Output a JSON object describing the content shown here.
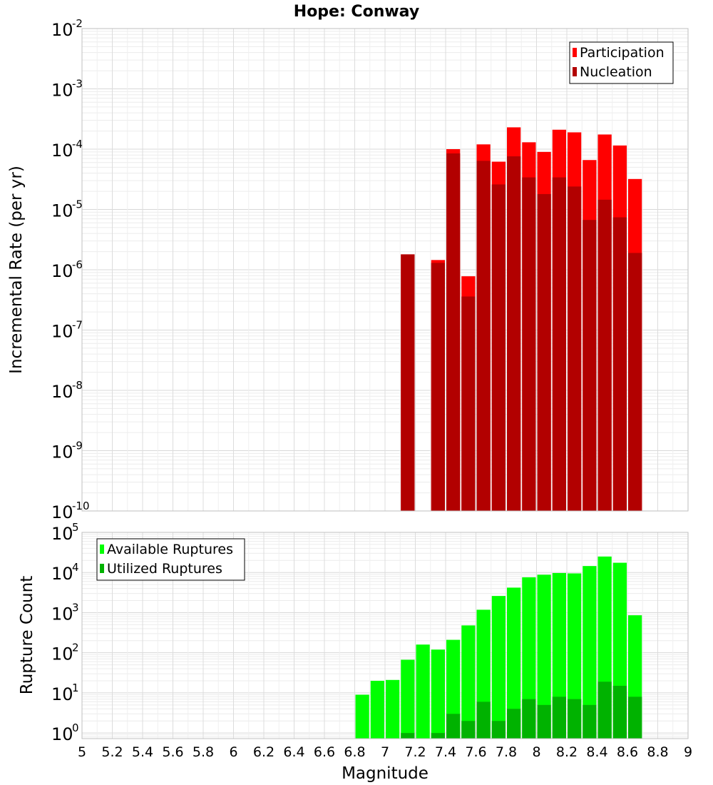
{
  "chart_data": {
    "type": "bar",
    "title": "Hope: Conway",
    "xlabel": "Magnitude",
    "x_ticks": [
      "5",
      "5.2",
      "5.4",
      "5.6",
      "5.8",
      "6",
      "6.2",
      "6.4",
      "6.6",
      "6.8",
      "7",
      "7.2",
      "7.4",
      "7.6",
      "7.8",
      "8",
      "8.2",
      "8.4",
      "8.6",
      "8.8",
      "9"
    ],
    "xlim": [
      5,
      9
    ],
    "panels": [
      {
        "id": "rate",
        "ylabel": "Incremental Rate (per yr)",
        "yscale": "log",
        "ylim_exp": [
          -10,
          -2
        ],
        "y_ticks": [
          {
            "base": "10",
            "exp": "-2"
          },
          {
            "base": "10",
            "exp": "-3"
          },
          {
            "base": "10",
            "exp": "-4"
          },
          {
            "base": "10",
            "exp": "-5"
          },
          {
            "base": "10",
            "exp": "-6"
          },
          {
            "base": "10",
            "exp": "-7"
          },
          {
            "base": "10",
            "exp": "-8"
          },
          {
            "base": "10",
            "exp": "-9"
          },
          {
            "base": "10",
            "exp": "-10"
          }
        ],
        "grid": true,
        "legend_position": "top-right",
        "series": [
          {
            "name": "Participation",
            "color": "#ff0000",
            "x": [
              7.1,
              7.3,
              7.4,
              7.5,
              7.6,
              7.7,
              7.8,
              7.9,
              8.0,
              8.1,
              8.2,
              8.3,
              8.4,
              8.5,
              8.6
            ],
            "values": [
              1.8e-06,
              1.45e-06,
              0.0001,
              7.8e-07,
              0.00012,
              6.2e-05,
              0.00023,
              0.00013,
              9e-05,
              0.00021,
              0.00019,
              6.6e-05,
              0.000175,
              0.000115,
              3.2e-05
            ]
          },
          {
            "name": "Nucleation",
            "color": "#b20000",
            "x": [
              7.1,
              7.3,
              7.4,
              7.5,
              7.6,
              7.7,
              7.8,
              7.9,
              8.0,
              8.1,
              8.2,
              8.3,
              8.4,
              8.5,
              8.6
            ],
            "values": [
              1.8e-06,
              1.3e-06,
              8.5e-05,
              3.6e-07,
              6.4e-05,
              2.6e-05,
              7.6e-05,
              3.4e-05,
              1.8e-05,
              3.4e-05,
              2.4e-05,
              6.7e-06,
              1.45e-05,
              7.4e-06,
              1.9e-06
            ]
          }
        ]
      },
      {
        "id": "count",
        "ylabel": "Rupture Count",
        "yscale": "log",
        "ylim_exp": [
          -0.14,
          5
        ],
        "y_ticks": [
          {
            "base": "10",
            "exp": "5"
          },
          {
            "base": "10",
            "exp": "4"
          },
          {
            "base": "10",
            "exp": "3"
          },
          {
            "base": "10",
            "exp": "2"
          },
          {
            "base": "10",
            "exp": "1"
          },
          {
            "base": "10",
            "exp": "0"
          }
        ],
        "grid": true,
        "legend_position": "top-left",
        "series": [
          {
            "name": "Available Ruptures",
            "color": "#00ff00",
            "x": [
              6.8,
              6.9,
              7.0,
              7.1,
              7.2,
              7.3,
              7.4,
              7.5,
              7.6,
              7.7,
              7.8,
              7.9,
              8.0,
              8.1,
              8.2,
              8.3,
              8.4,
              8.5,
              8.6
            ],
            "values": [
              9,
              20,
              21,
              67,
              160,
              120,
              210,
              480,
              1180,
              2600,
              4200,
              7600,
              8800,
              9700,
              9500,
              14500,
              25000,
              17500,
              860
            ]
          },
          {
            "name": "Utilized Ruptures",
            "color": "#00b200",
            "x": [
              7.1,
              7.3,
              7.4,
              7.5,
              7.6,
              7.7,
              7.8,
              7.9,
              8.0,
              8.1,
              8.2,
              8.3,
              8.4,
              8.5,
              8.6
            ],
            "values": [
              1,
              1,
              3,
              2,
              6,
              2,
              4,
              7,
              5,
              8,
              7,
              5,
              19,
              15,
              8
            ]
          }
        ]
      }
    ]
  }
}
